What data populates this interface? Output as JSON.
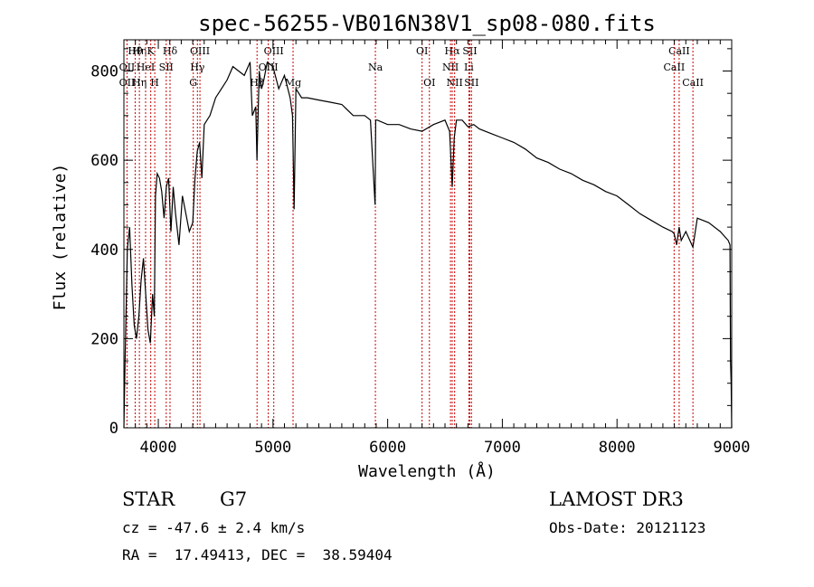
{
  "chart_data": {
    "type": "line",
    "title": "spec-56255-VB016N38V1_sp08-080.fits",
    "xlabel": "Wavelength (Å)",
    "ylabel": "Flux (relative)",
    "xlim": [
      3700,
      9000
    ],
    "ylim": [
      0,
      870
    ],
    "xticks": [
      4000,
      5000,
      6000,
      7000,
      8000,
      9000
    ],
    "yticks": [
      0,
      200,
      400,
      600,
      800
    ],
    "series": [
      {
        "name": "flux",
        "x": [
          3700,
          3710,
          3730,
          3750,
          3770,
          3790,
          3810,
          3830,
          3850,
          3870,
          3890,
          3910,
          3930,
          3950,
          3965,
          3975,
          3990,
          4010,
          4030,
          4050,
          4070,
          4090,
          4110,
          4130,
          4150,
          4180,
          4210,
          4240,
          4270,
          4300,
          4320,
          4340,
          4360,
          4380,
          4400,
          4450,
          4500,
          4550,
          4600,
          4650,
          4700,
          4750,
          4800,
          4820,
          4850,
          4860,
          4880,
          4900,
          4920,
          4950,
          5000,
          5050,
          5100,
          5150,
          5170,
          5184,
          5200,
          5250,
          5300,
          5400,
          5500,
          5600,
          5700,
          5800,
          5850,
          5890,
          5896,
          5910,
          6000,
          6100,
          6200,
          6300,
          6400,
          6500,
          6540,
          6563,
          6580,
          6600,
          6650,
          6700,
          6750,
          6800,
          6900,
          7000,
          7100,
          7200,
          7300,
          7400,
          7500,
          7600,
          7700,
          7800,
          7900,
          8000,
          8100,
          8200,
          8300,
          8400,
          8480,
          8498,
          8520,
          8542,
          8560,
          8600,
          8662,
          8700,
          8800,
          8900,
          8970,
          8985,
          8990,
          8995,
          9000
        ],
        "values": [
          0,
          150,
          400,
          450,
          320,
          230,
          200,
          250,
          330,
          380,
          300,
          220,
          190,
          300,
          250,
          520,
          570,
          560,
          530,
          470,
          540,
          560,
          440,
          540,
          480,
          410,
          520,
          480,
          440,
          460,
          560,
          620,
          640,
          560,
          680,
          700,
          740,
          760,
          780,
          810,
          800,
          790,
          820,
          700,
          720,
          600,
          800,
          760,
          780,
          820,
          810,
          760,
          790,
          740,
          700,
          490,
          760,
          740,
          740,
          735,
          730,
          725,
          700,
          700,
          690,
          500,
          690,
          690,
          680,
          680,
          670,
          665,
          680,
          690,
          665,
          540,
          650,
          690,
          690,
          675,
          680,
          670,
          660,
          650,
          640,
          625,
          605,
          595,
          580,
          570,
          555,
          545,
          530,
          520,
          500,
          480,
          465,
          450,
          440,
          435,
          410,
          450,
          420,
          440,
          405,
          470,
          460,
          440,
          420,
          410,
          150,
          100,
          0
        ]
      }
    ],
    "line_markers": [
      {
        "label": "Hθ",
        "x": 3798,
        "row": 1
      },
      {
        "label": "Hη",
        "x": 3835,
        "row": 1
      },
      {
        "label": "K",
        "x": 3934,
        "row": 1
      },
      {
        "label": "Hδ",
        "x": 4102,
        "row": 1
      },
      {
        "label": "OII",
        "x": 3727,
        "row": 2
      },
      {
        "label": "HeI",
        "x": 3889,
        "row": 2
      },
      {
        "label": "SII",
        "x": 4069,
        "row": 2
      },
      {
        "label": "OII",
        "x": 3727,
        "row": 3
      },
      {
        "label": "Hη",
        "x": 3835,
        "row": 3
      },
      {
        "label": "H",
        "x": 3969,
        "row": 3
      },
      {
        "label": "OIII",
        "x": 4363,
        "row": 1
      },
      {
        "label": "Hγ",
        "x": 4341,
        "row": 2
      },
      {
        "label": "G",
        "x": 4305,
        "row": 3
      },
      {
        "label": "OIII",
        "x": 5007,
        "row": 1
      },
      {
        "label": "OIII",
        "x": 4959,
        "row": 2
      },
      {
        "label": "Hβ",
        "x": 4861,
        "row": 3
      },
      {
        "label": "Mg",
        "x": 5175,
        "row": 3
      },
      {
        "label": "Na",
        "x": 5893,
        "row": 2
      },
      {
        "label": "OI",
        "x": 6300,
        "row": 1
      },
      {
        "label": "OI",
        "x": 6364,
        "row": 3
      },
      {
        "label": "Hα",
        "x": 6563,
        "row": 1
      },
      {
        "label": "SII",
        "x": 6717,
        "row": 1
      },
      {
        "label": "NII",
        "x": 6548,
        "row": 2
      },
      {
        "label": "Li",
        "x": 6708,
        "row": 2
      },
      {
        "label": "NII",
        "x": 6584,
        "row": 3
      },
      {
        "label": "SII",
        "x": 6731,
        "row": 3
      },
      {
        "label": "CaII",
        "x": 8542,
        "row": 1
      },
      {
        "label": "CaII",
        "x": 8498,
        "row": 2
      },
      {
        "label": "CaII",
        "x": 8662,
        "row": 3
      }
    ]
  },
  "info": {
    "object_type": "STAR",
    "subclass": "G7",
    "survey": "LAMOST DR3",
    "velocity": "cz = -47.6 ± 2.4 km/s",
    "obs_date": "Obs-Date: 20121123",
    "coords": "RA =  17.49413, DEC =  38.59404"
  }
}
